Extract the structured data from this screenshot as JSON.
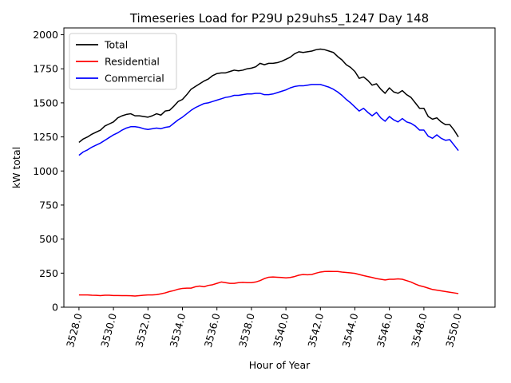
{
  "chart_data": {
    "type": "line",
    "title": "Timeseries Load for P29U p29uhs5_1247  Day 148",
    "xlabel": "Hour of Year",
    "ylabel": "kW total",
    "xlim": [
      3527.125,
      3552.125
    ],
    "ylim": [
      0,
      2050
    ],
    "x_start": 3528.0,
    "x_step": 0.25,
    "xticks": [
      3528.0,
      3530.0,
      3532.0,
      3534.0,
      3536.0,
      3538.0,
      3540.0,
      3542.0,
      3544.0,
      3546.0,
      3548.0,
      3550.0
    ],
    "xtick_labels": [
      "3528.0",
      "3530.0",
      "3532.0",
      "3534.0",
      "3536.0",
      "3538.0",
      "3540.0",
      "3542.0",
      "3544.0",
      "3546.0",
      "3548.0",
      "3550.0"
    ],
    "yticks": [
      0,
      250,
      500,
      750,
      1000,
      1250,
      1500,
      1750,
      2000
    ],
    "ytick_labels": [
      "0",
      "250",
      "500",
      "750",
      "1000",
      "1250",
      "1500",
      "1750",
      "2000"
    ],
    "legend_position": "upper-left",
    "series": [
      {
        "name": "Total",
        "color": "#000000",
        "values": [
          1210,
          1235,
          1250,
          1270,
          1285,
          1300,
          1330,
          1345,
          1360,
          1390,
          1405,
          1415,
          1420,
          1405,
          1405,
          1400,
          1395,
          1405,
          1420,
          1410,
          1440,
          1445,
          1475,
          1510,
          1525,
          1560,
          1600,
          1620,
          1640,
          1660,
          1675,
          1700,
          1715,
          1720,
          1720,
          1730,
          1740,
          1735,
          1740,
          1750,
          1755,
          1765,
          1790,
          1780,
          1790,
          1790,
          1795,
          1805,
          1820,
          1835,
          1860,
          1875,
          1870,
          1875,
          1880,
          1890,
          1895,
          1890,
          1880,
          1870,
          1840,
          1815,
          1780,
          1760,
          1730,
          1680,
          1690,
          1665,
          1630,
          1640,
          1600,
          1570,
          1610,
          1580,
          1570,
          1590,
          1560,
          1540,
          1500,
          1460,
          1460,
          1400,
          1380,
          1390,
          1360,
          1340,
          1340,
          1300,
          1250
        ]
      },
      {
        "name": "Residential",
        "color": "#ff0000",
        "values": [
          90,
          90,
          90,
          88,
          87,
          85,
          88,
          88,
          86,
          86,
          85,
          85,
          84,
          82,
          85,
          88,
          90,
          90,
          92,
          98,
          105,
          115,
          122,
          132,
          138,
          140,
          140,
          150,
          155,
          150,
          160,
          165,
          175,
          185,
          180,
          175,
          175,
          180,
          182,
          180,
          180,
          185,
          195,
          210,
          220,
          222,
          220,
          218,
          215,
          218,
          225,
          235,
          240,
          238,
          240,
          250,
          258,
          262,
          263,
          262,
          262,
          258,
          255,
          252,
          248,
          240,
          232,
          225,
          218,
          210,
          205,
          200,
          205,
          205,
          208,
          205,
          195,
          185,
          170,
          158,
          150,
          140,
          130,
          125,
          120,
          115,
          110,
          105,
          100
        ]
      },
      {
        "name": "Commercial",
        "color": "#0000ff",
        "values": [
          1115,
          1140,
          1155,
          1175,
          1190,
          1205,
          1225,
          1245,
          1265,
          1280,
          1300,
          1315,
          1325,
          1325,
          1320,
          1310,
          1305,
          1310,
          1315,
          1310,
          1320,
          1325,
          1350,
          1375,
          1395,
          1420,
          1445,
          1465,
          1480,
          1495,
          1500,
          1510,
          1520,
          1530,
          1540,
          1545,
          1555,
          1555,
          1560,
          1565,
          1565,
          1570,
          1570,
          1560,
          1560,
          1565,
          1575,
          1585,
          1595,
          1610,
          1620,
          1625,
          1625,
          1630,
          1635,
          1635,
          1635,
          1625,
          1615,
          1600,
          1580,
          1555,
          1525,
          1500,
          1470,
          1440,
          1460,
          1430,
          1405,
          1430,
          1390,
          1365,
          1400,
          1375,
          1360,
          1385,
          1360,
          1350,
          1330,
          1300,
          1300,
          1255,
          1240,
          1265,
          1240,
          1225,
          1230,
          1190,
          1150
        ]
      }
    ]
  }
}
